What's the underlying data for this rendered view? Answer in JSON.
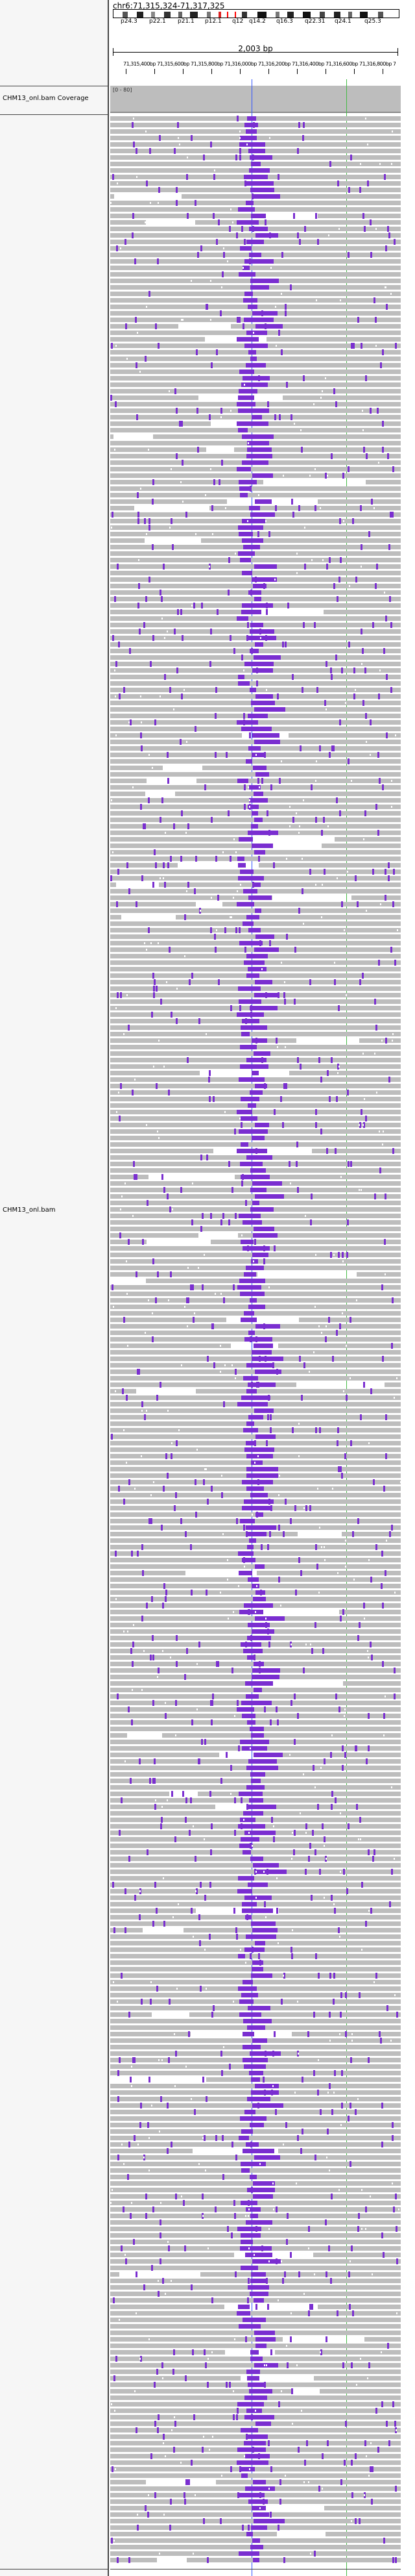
{
  "locus": "chr6:71,315,324-71,317,325",
  "span_label": "2,003 bp",
  "cytobands": [
    "p24.3",
    "p22.1",
    "p21.1",
    "p12.1",
    "q12",
    "q14.2",
    "q16.3",
    "q22.31",
    "q24.1",
    "q25.3"
  ],
  "ruler_ticks": "71,315,400bp 71,315,600bp 71,315,800bp 71,316,000bp 71,316,200bp 71,316,400bp 71,316,600bp 71,316,800bp 71,317,000bp 71,317,200bp",
  "coverage_range": "[0 - 80]",
  "tracks": {
    "coverage_label": "CHM13_onl.bam Coverage",
    "reads_label": "CHM13_onl.bam"
  },
  "colors": {
    "read": "#bdbdbd",
    "insertion": "#7a2ed0",
    "highlight_blue": "#3355ff",
    "highlight_green": "#44bb44",
    "centromere": "#dd2222"
  }
}
